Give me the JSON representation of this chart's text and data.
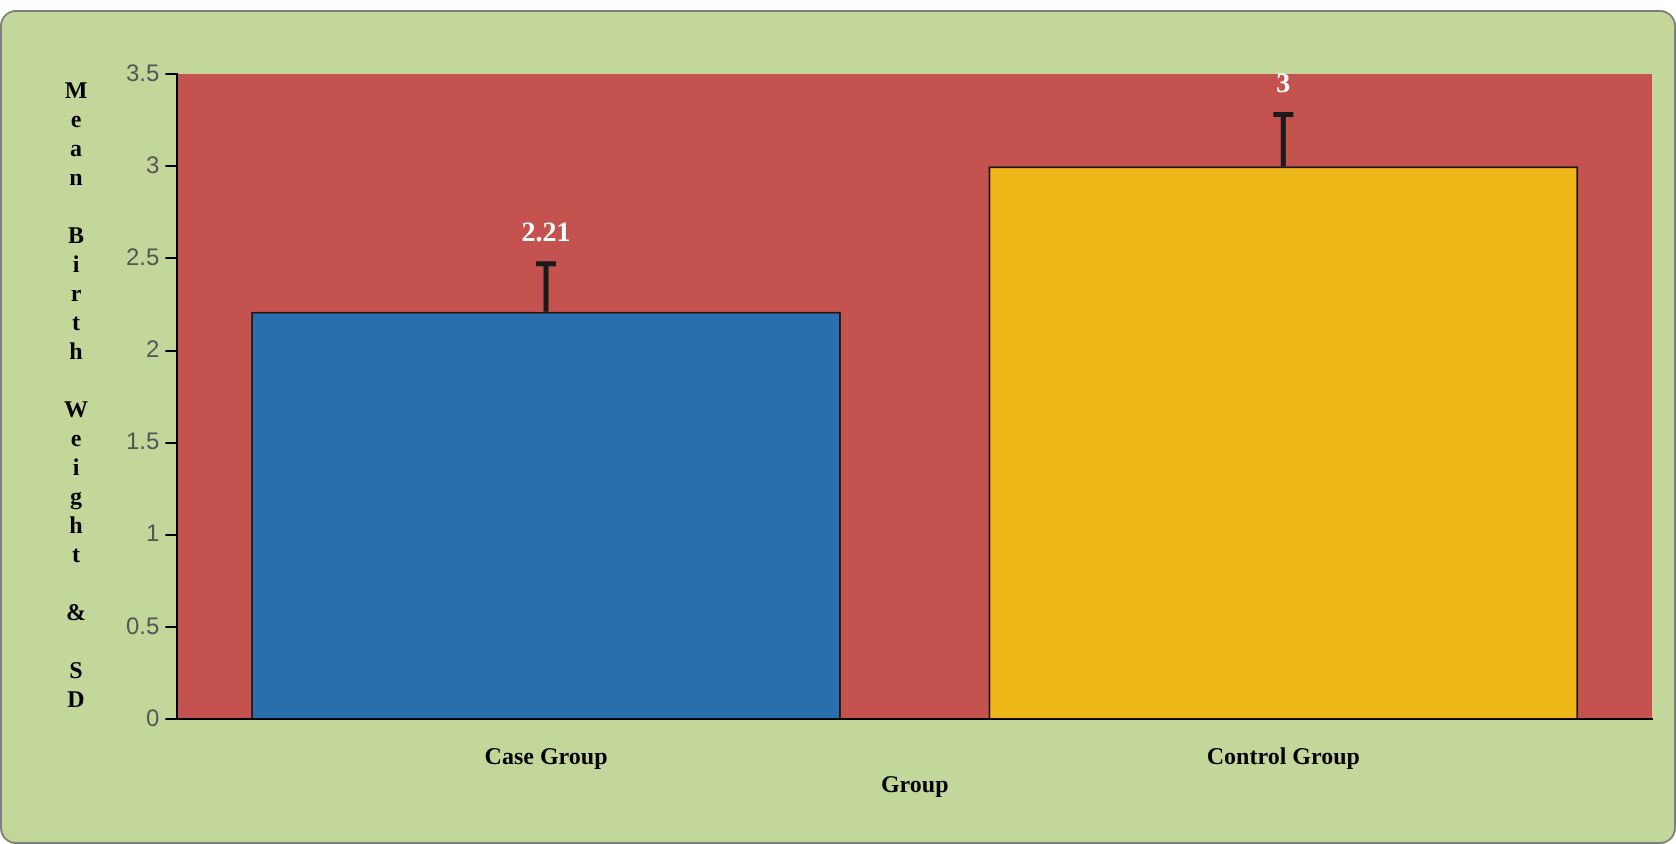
{
  "chart_data": {
    "type": "bar",
    "xlabel": "Group",
    "ylabel": "Mean Birth Weight & SD",
    "categories": [
      "Case Group",
      "Control Group"
    ],
    "values": [
      2.21,
      3
    ],
    "colors": [
      "#2a6fad",
      "#efb819"
    ],
    "errors": [
      [
        2.21,
        2.47
      ],
      [
        3,
        3.28
      ]
    ],
    "data_labels": true,
    "ylim": [
      0,
      3.5
    ],
    "yticks": [
      0,
      0.5,
      1,
      1.5,
      2,
      2.5,
      3,
      3.5
    ],
    "grid": false,
    "legend": false
  }
}
